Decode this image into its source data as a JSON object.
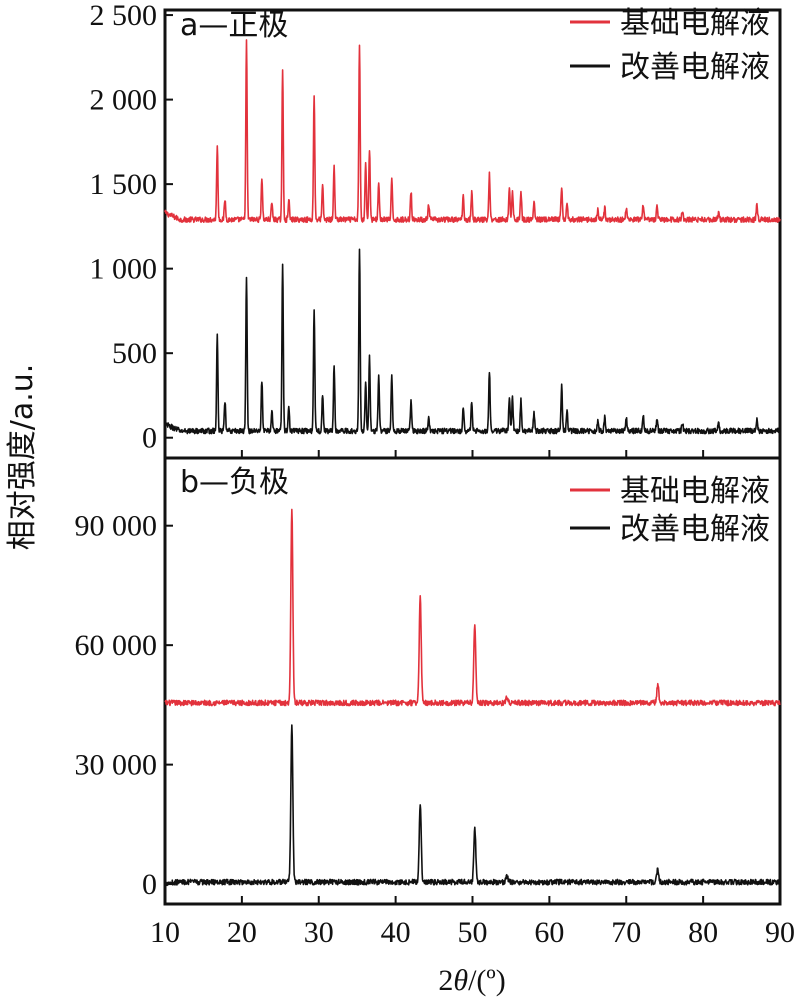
{
  "colors": {
    "basic": "#e2323c",
    "improved": "#111111"
  },
  "x_axis": {
    "label_prefix": "2",
    "label_theta": "θ",
    "label_suffix": "/(º)",
    "range": [
      10,
      90
    ],
    "ticks": [
      10,
      20,
      30,
      40,
      50,
      60,
      70,
      80,
      90
    ]
  },
  "y_label": "相对强度/a.u.",
  "chart_data": [
    {
      "type": "line",
      "panel": "a—正极",
      "ylim": [
        -120,
        2530
      ],
      "yticks": [
        0,
        500,
        1000,
        1500,
        2000,
        2500
      ],
      "ytick_labels": [
        "0",
        "500",
        "1 000",
        "1 500",
        "2 000",
        "2 500"
      ],
      "series": [
        {
          "name": "基础电解液",
          "color": "#e2323c",
          "baseline": 1290,
          "start_level": 1330,
          "peaks": [
            [
              16.8,
              430
            ],
            [
              17.8,
              120
            ],
            [
              20.6,
              1050
            ],
            [
              22.6,
              250
            ],
            [
              23.9,
              100
            ],
            [
              25.3,
              880
            ],
            [
              26.1,
              120
            ],
            [
              29.4,
              740
            ],
            [
              30.5,
              200
            ],
            [
              32.0,
              310
            ],
            [
              35.3,
              1040
            ],
            [
              36.1,
              350
            ],
            [
              36.6,
              420
            ],
            [
              37.8,
              220
            ],
            [
              39.5,
              230
            ],
            [
              42.0,
              170
            ],
            [
              44.3,
              90
            ],
            [
              48.8,
              140
            ],
            [
              49.9,
              160
            ],
            [
              52.2,
              270
            ],
            [
              54.8,
              190
            ],
            [
              55.2,
              170
            ],
            [
              56.3,
              170
            ],
            [
              58.0,
              100
            ],
            [
              61.6,
              200
            ],
            [
              62.3,
              90
            ],
            [
              66.3,
              60
            ],
            [
              67.2,
              70
            ],
            [
              70.0,
              70
            ],
            [
              72.2,
              80
            ],
            [
              74.0,
              80
            ],
            [
              77.3,
              50
            ],
            [
              82.0,
              40
            ],
            [
              87.0,
              90
            ]
          ]
        },
        {
          "name": "改善电解液",
          "color": "#111111",
          "baseline": 40,
          "start_level": 80,
          "peaks": [
            [
              16.8,
              560
            ],
            [
              17.8,
              170
            ],
            [
              20.6,
              910
            ],
            [
              22.6,
              300
            ],
            [
              23.9,
              120
            ],
            [
              25.3,
              1000
            ],
            [
              26.1,
              140
            ],
            [
              29.4,
              730
            ],
            [
              30.5,
              220
            ],
            [
              32.0,
              390
            ],
            [
              35.3,
              1090
            ],
            [
              36.1,
              300
            ],
            [
              36.6,
              450
            ],
            [
              37.8,
              330
            ],
            [
              39.5,
              330
            ],
            [
              42.0,
              180
            ],
            [
              44.3,
              90
            ],
            [
              48.8,
              150
            ],
            [
              49.9,
              170
            ],
            [
              52.2,
              360
            ],
            [
              54.8,
              210
            ],
            [
              55.2,
              200
            ],
            [
              56.3,
              180
            ],
            [
              58.0,
              100
            ],
            [
              61.6,
              270
            ],
            [
              62.3,
              110
            ],
            [
              66.3,
              60
            ],
            [
              67.2,
              80
            ],
            [
              70.0,
              80
            ],
            [
              72.2,
              90
            ],
            [
              74.0,
              80
            ],
            [
              77.3,
              50
            ],
            [
              82.0,
              40
            ],
            [
              87.0,
              70
            ]
          ]
        }
      ]
    },
    {
      "type": "line",
      "panel": "b—负极",
      "ylim": [
        -5000,
        107000
      ],
      "yticks": [
        0,
        30000,
        60000,
        90000
      ],
      "ytick_labels": [
        "0",
        "30 000",
        "60 000",
        "90 000"
      ],
      "series": [
        {
          "name": "基础电解液",
          "color": "#e2323c",
          "baseline": 45500,
          "start_level": 45500,
          "peaks": [
            [
              26.5,
              48500
            ],
            [
              43.2,
              27000
            ],
            [
              50.3,
              20000
            ],
            [
              54.5,
              1500
            ],
            [
              74.1,
              4500
            ]
          ]
        },
        {
          "name": "改善电解液",
          "color": "#111111",
          "baseline": 500,
          "start_level": 300,
          "peaks": [
            [
              26.5,
              39500
            ],
            [
              43.2,
              19500
            ],
            [
              50.3,
              13500
            ],
            [
              54.5,
              1400
            ],
            [
              74.1,
              3200
            ]
          ]
        }
      ]
    }
  ]
}
